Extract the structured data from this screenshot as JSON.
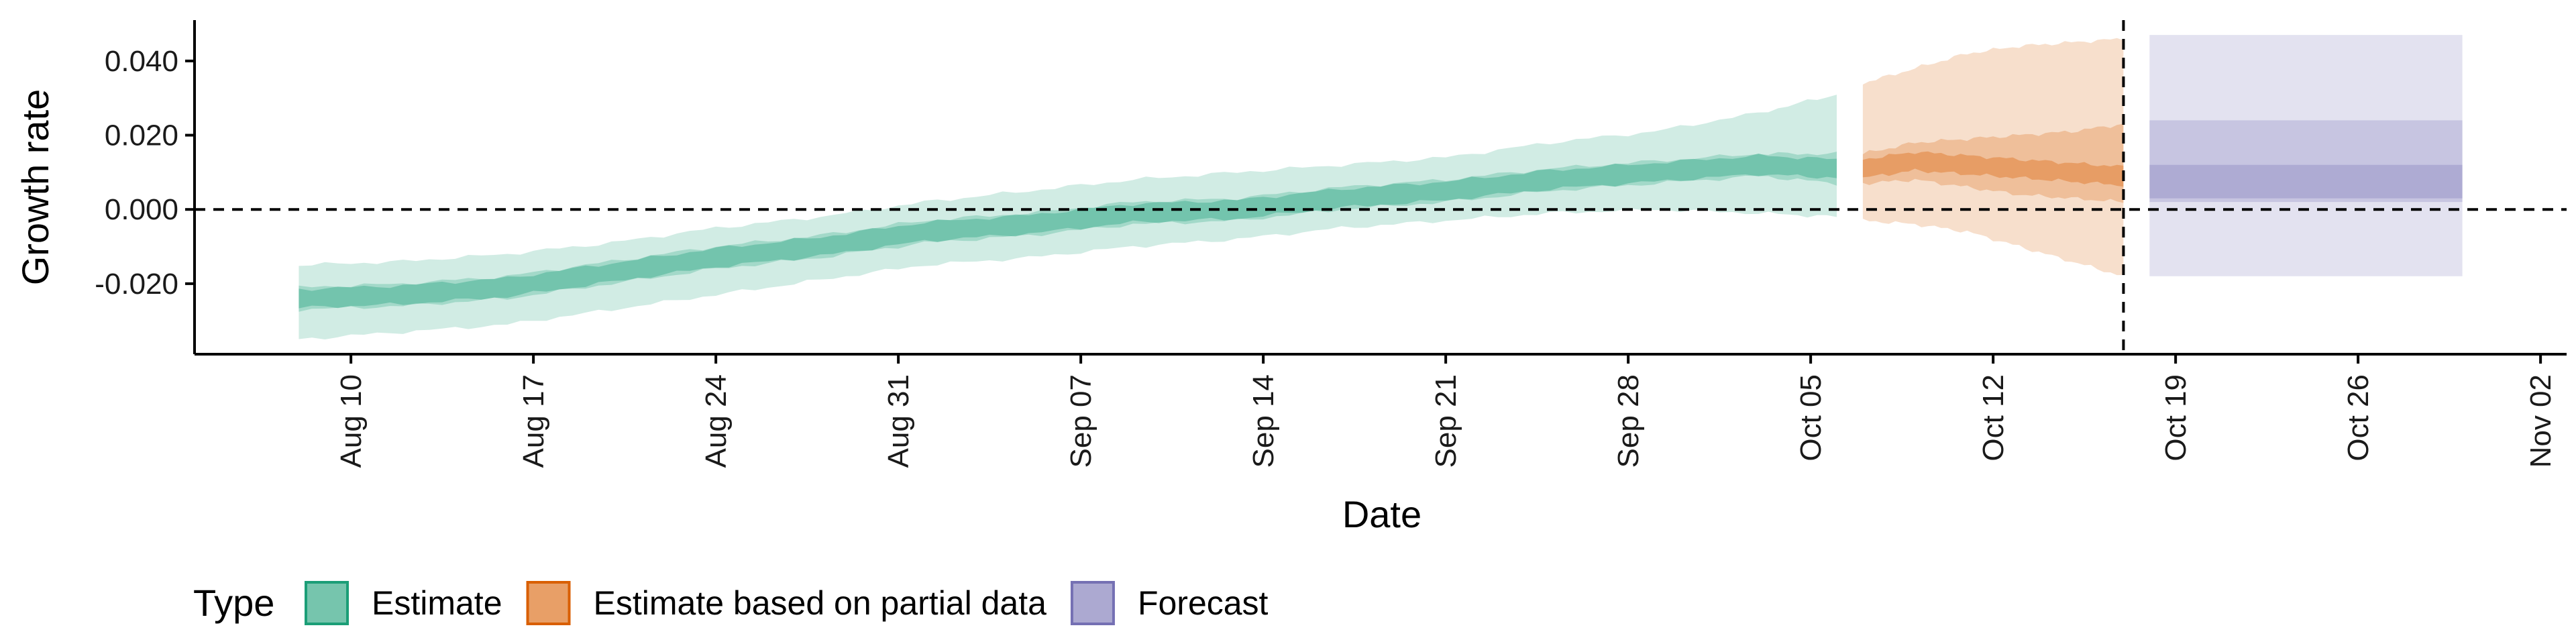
{
  "chart_data": {
    "type": "area",
    "xlabel": "Date",
    "ylabel": "Growth rate",
    "x_range": [
      "2020-08-04",
      "2020-11-03"
    ],
    "ylim": [
      -0.039,
      0.051
    ],
    "y_ticks": [
      {
        "value": -0.02,
        "label": "-0.020"
      },
      {
        "value": 0.0,
        "label": "0.000"
      },
      {
        "value": 0.02,
        "label": "0.020"
      },
      {
        "value": 0.04,
        "label": "0.040"
      }
    ],
    "x_ticks": [
      {
        "date": "2020-08-10",
        "label": "Aug 10"
      },
      {
        "date": "2020-08-17",
        "label": "Aug 17"
      },
      {
        "date": "2020-08-24",
        "label": "Aug 24"
      },
      {
        "date": "2020-08-31",
        "label": "Aug 31"
      },
      {
        "date": "2020-09-07",
        "label": "Sep 07"
      },
      {
        "date": "2020-09-14",
        "label": "Sep 14"
      },
      {
        "date": "2020-09-21",
        "label": "Sep 21"
      },
      {
        "date": "2020-09-28",
        "label": "Sep 28"
      },
      {
        "date": "2020-10-05",
        "label": "Oct 05"
      },
      {
        "date": "2020-10-12",
        "label": "Oct 12"
      },
      {
        "date": "2020-10-19",
        "label": "Oct 19"
      },
      {
        "date": "2020-10-26",
        "label": "Oct 26"
      },
      {
        "date": "2020-11-02",
        "label": "Nov 02"
      }
    ],
    "reference_lines": [
      {
        "orientation": "horizontal",
        "value": 0.0,
        "style": "dashed"
      },
      {
        "orientation": "vertical",
        "date": "2020-10-17",
        "style": "dashed"
      }
    ],
    "legend": {
      "title": "Type",
      "placement": "bottom"
    },
    "series": [
      {
        "name": "Estimate",
        "color": "#1b9e77",
        "points": [
          {
            "date": "2020-08-08",
            "median": -0.024,
            "lo50": -0.027,
            "hi50": -0.021,
            "lo90": -0.035,
            "hi90": -0.015
          },
          {
            "date": "2020-08-12",
            "median": -0.023,
            "lo50": -0.026,
            "hi50": -0.02,
            "lo90": -0.033,
            "hi90": -0.014
          },
          {
            "date": "2020-08-16",
            "median": -0.021,
            "lo50": -0.024,
            "hi50": -0.018,
            "lo90": -0.031,
            "hi90": -0.012
          },
          {
            "date": "2020-08-20",
            "median": -0.017,
            "lo50": -0.02,
            "hi50": -0.014,
            "lo90": -0.027,
            "hi90": -0.009
          },
          {
            "date": "2020-08-24",
            "median": -0.013,
            "lo50": -0.016,
            "hi50": -0.01,
            "lo90": -0.023,
            "hi90": -0.005
          },
          {
            "date": "2020-08-28",
            "median": -0.01,
            "lo50": -0.013,
            "hi50": -0.007,
            "lo90": -0.019,
            "hi90": -0.002
          },
          {
            "date": "2020-09-01",
            "median": -0.006,
            "lo50": -0.009,
            "hi50": -0.003,
            "lo90": -0.015,
            "hi90": 0.002
          },
          {
            "date": "2020-09-05",
            "median": -0.004,
            "lo50": -0.007,
            "hi50": -0.001,
            "lo90": -0.013,
            "hi90": 0.005
          },
          {
            "date": "2020-09-09",
            "median": -0.001,
            "lo50": -0.004,
            "hi50": 0.002,
            "lo90": -0.01,
            "hi90": 0.008
          },
          {
            "date": "2020-09-13",
            "median": 0.0,
            "lo50": -0.003,
            "hi50": 0.003,
            "lo90": -0.008,
            "hi90": 0.01
          },
          {
            "date": "2020-09-17",
            "median": 0.003,
            "lo50": 0.0,
            "hi50": 0.006,
            "lo90": -0.005,
            "hi90": 0.012
          },
          {
            "date": "2020-09-21",
            "median": 0.005,
            "lo50": 0.002,
            "hi50": 0.008,
            "lo90": -0.003,
            "hi90": 0.014
          },
          {
            "date": "2020-09-25",
            "median": 0.008,
            "lo50": 0.005,
            "hi50": 0.011,
            "lo90": -0.001,
            "hi90": 0.018
          },
          {
            "date": "2020-09-29",
            "median": 0.01,
            "lo50": 0.007,
            "hi50": 0.013,
            "lo90": 0.0,
            "hi90": 0.021
          },
          {
            "date": "2020-10-03",
            "median": 0.012,
            "lo50": 0.009,
            "hi50": 0.015,
            "lo90": -0.001,
            "hi90": 0.026
          },
          {
            "date": "2020-10-06",
            "median": 0.011,
            "lo50": 0.007,
            "hi50": 0.015,
            "lo90": -0.002,
            "hi90": 0.031
          }
        ]
      },
      {
        "name": "Estimate based on partial data",
        "color": "#d95f02",
        "points": [
          {
            "date": "2020-10-07",
            "median": 0.011,
            "lo50": 0.007,
            "hi50": 0.015,
            "lo90": -0.003,
            "hi90": 0.034
          },
          {
            "date": "2020-10-09",
            "median": 0.013,
            "lo50": 0.008,
            "hi50": 0.018,
            "lo90": -0.004,
            "hi90": 0.038
          },
          {
            "date": "2020-10-11",
            "median": 0.012,
            "lo50": 0.006,
            "hi50": 0.019,
            "lo90": -0.006,
            "hi90": 0.042
          },
          {
            "date": "2020-10-13",
            "median": 0.011,
            "lo50": 0.004,
            "hi50": 0.02,
            "lo90": -0.01,
            "hi90": 0.044
          },
          {
            "date": "2020-10-15",
            "median": 0.01,
            "lo50": 0.003,
            "hi50": 0.021,
            "lo90": -0.014,
            "hi90": 0.045
          },
          {
            "date": "2020-10-17",
            "median": 0.009,
            "lo50": 0.002,
            "hi50": 0.023,
            "lo90": -0.018,
            "hi90": 0.046
          }
        ]
      },
      {
        "name": "Forecast",
        "color": "#7570b3",
        "points": [
          {
            "date": "2020-10-18",
            "median": 0.007,
            "lo25": 0.003,
            "hi25": 0.012,
            "lo50": 0.002,
            "hi50": 0.024,
            "lo90": -0.018,
            "hi90": 0.047
          },
          {
            "date": "2020-10-30",
            "median": 0.007,
            "lo25": 0.003,
            "hi25": 0.012,
            "lo50": 0.002,
            "hi50": 0.024,
            "lo90": -0.018,
            "hi90": 0.047
          }
        ]
      }
    ]
  }
}
